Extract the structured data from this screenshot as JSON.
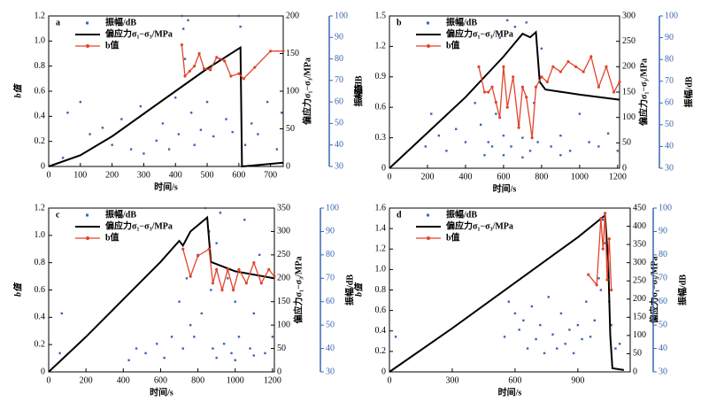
{
  "chart_data": [
    {
      "type": "combo",
      "label": "a",
      "xlabel": "时间/s",
      "ylabel": "b值",
      "y2label": "偏应力σ₁−σ₃/MPa",
      "y3label": "振幅/dB",
      "legend": "upper left",
      "xlim": [
        0,
        740
      ],
      "xticks": [
        0,
        100,
        200,
        300,
        400,
        500,
        600,
        700
      ],
      "ylim": [
        0,
        1.2
      ],
      "yticks": [
        0,
        0.2,
        0.4,
        0.6,
        0.8,
        {
          "value": 1,
          "label": "1.0"
        },
        1.2
      ],
      "y2lim": [
        0,
        200
      ],
      "y2ticks": [
        0,
        50,
        100,
        150,
        200
      ],
      "y3lim": [
        30,
        100
      ],
      "y3ticks": [
        30,
        40,
        50,
        60,
        70,
        80,
        90,
        100
      ],
      "series": [
        {
          "name": "振幅/dB",
          "type": "scatter",
          "axis": "y3",
          "color": "#3a66b0",
          "x": [
            45,
            60,
            100,
            130,
            170,
            200,
            230,
            260,
            290,
            300,
            340,
            360,
            380,
            400,
            410,
            420,
            425,
            430,
            440,
            450,
            460,
            480,
            500,
            520,
            540,
            560,
            580,
            600,
            605,
            620,
            640,
            660,
            690,
            720,
            735
          ],
          "values": [
            34,
            55,
            60,
            45,
            48,
            40,
            52,
            38,
            58,
            36,
            42,
            50,
            38,
            62,
            45,
            100,
            94,
            80,
            98,
            55,
            40,
            47,
            60,
            44,
            80,
            52,
            46,
            100,
            95,
            40,
            50,
            45,
            60,
            38,
            55
          ]
        },
        {
          "name": "偏应力σ₁−σ₃/MPa",
          "type": "line",
          "axis": "y2",
          "color": "#000000",
          "x": [
            0,
            100,
            200,
            300,
            400,
            500,
            605,
            610,
            740
          ],
          "values": [
            0,
            15,
            40,
            70,
            100,
            130,
            158,
            0,
            5
          ]
        },
        {
          "name": "b值",
          "type": "line",
          "axis": "y",
          "color": "#e0452c",
          "markers": true,
          "x": [
            420,
            430,
            445,
            460,
            475,
            490,
            510,
            530,
            555,
            575,
            600,
            615,
            650,
            700,
            740
          ],
          "values": [
            0.97,
            0.72,
            0.76,
            0.8,
            0.9,
            0.78,
            0.77,
            0.87,
            0.84,
            0.72,
            0.74,
            0.7,
            0.79,
            0.92,
            0.92
          ]
        }
      ]
    },
    {
      "type": "combo",
      "label": "b",
      "xlabel": "时间/s",
      "ylabel": "b值",
      "y2label": "偏应力σ₁−σ₃/MPa",
      "y3label": "振幅/dB",
      "legend": "upper left",
      "xlim": [
        0,
        1210
      ],
      "xticks": [
        0,
        200,
        400,
        600,
        800,
        1000,
        1200
      ],
      "ylim": [
        0,
        1.5
      ],
      "yticks": [
        0,
        0.3,
        0.6,
        0.9,
        1.2,
        1.5
      ],
      "y2lim": [
        0,
        300
      ],
      "y2ticks": [
        0,
        50,
        100,
        150,
        200,
        250,
        300
      ],
      "y3lim": [
        30,
        100
      ],
      "y3ticks": [
        30,
        40,
        50,
        60,
        70,
        80,
        90,
        100
      ],
      "series": [
        {
          "name": "振幅/dB",
          "type": "scatter",
          "axis": "y3",
          "color": "#3a66b0",
          "x": [
            190,
            220,
            260,
            300,
            350,
            400,
            450,
            480,
            500,
            520,
            540,
            560,
            580,
            600,
            620,
            640,
            660,
            680,
            700,
            720,
            740,
            760,
            780,
            800,
            850,
            900,
            950,
            1000,
            1050,
            1100,
            1150,
            1200,
            600,
            700,
            900
          ],
          "values": [
            40,
            55,
            45,
            38,
            48,
            42,
            60,
            50,
            36,
            42,
            40,
            55,
            90,
            45,
            98,
            40,
            95,
            50,
            44,
            97,
            38,
            60,
            42,
            85,
            40,
            45,
            38,
            55,
            42,
            40,
            46,
            38,
            36,
            35,
            36
          ]
        },
        {
          "name": "偏应力σ₁−σ₃/MPa",
          "type": "line",
          "axis": "y2",
          "color": "#000000",
          "x": [
            0,
            200,
            400,
            600,
            700,
            740,
            770,
            790,
            820,
            1000,
            1210
          ],
          "values": [
            0,
            70,
            140,
            220,
            265,
            258,
            268,
            170,
            155,
            145,
            135
          ]
        },
        {
          "name": "b值",
          "type": "line",
          "axis": "y",
          "color": "#e0452c",
          "markers": true,
          "x": [
            470,
            500,
            520,
            540,
            560,
            580,
            600,
            620,
            650,
            680,
            700,
            720,
            750,
            770,
            800,
            830,
            860,
            900,
            940,
            980,
            1020,
            1060,
            1100,
            1140,
            1180,
            1210
          ],
          "values": [
            1.0,
            0.75,
            0.75,
            0.8,
            0.65,
            0.5,
            1.0,
            0.6,
            0.9,
            0.4,
            0.8,
            0.7,
            0.3,
            0.8,
            0.9,
            0.85,
            1.0,
            0.95,
            1.05,
            1.0,
            0.95,
            1.1,
            0.8,
            1.0,
            0.75,
            0.85
          ]
        }
      ]
    },
    {
      "type": "combo",
      "label": "c",
      "xlabel": "时间/s",
      "ylabel": "b值",
      "y2label": "偏应力σ₁−σ₃/MPa",
      "y3label": "振幅/dB",
      "legend": "upper left",
      "xlim": [
        0,
        1210
      ],
      "xticks": [
        0,
        200,
        400,
        600,
        800,
        1000,
        1200
      ],
      "ylim": [
        0,
        1.2
      ],
      "yticks": [
        0,
        0.2,
        0.4,
        0.6,
        0.8,
        {
          "value": 1,
          "label": "1.0"
        },
        1.2
      ],
      "y2lim": [
        0,
        350
      ],
      "y2ticks": [
        0,
        50,
        100,
        150,
        200,
        250,
        300,
        350
      ],
      "y3lim": [
        30,
        100
      ],
      "y3ticks": [
        30,
        40,
        50,
        60,
        70,
        80,
        90,
        100
      ],
      "series": [
        {
          "name": "振幅/dB",
          "type": "scatter",
          "axis": "y3",
          "color": "#3a66b0",
          "x": [
            60,
            70,
            430,
            470,
            520,
            580,
            620,
            660,
            700,
            720,
            740,
            760,
            780,
            800,
            820,
            840,
            860,
            870,
            880,
            900,
            920,
            940,
            960,
            980,
            1000,
            1020,
            1050,
            1080,
            1100,
            1130,
            1160,
            1200,
            900,
            1000,
            1100
          ],
          "values": [
            38,
            55,
            35,
            40,
            38,
            42,
            36,
            45,
            60,
            40,
            70,
            50,
            45,
            80,
            55,
            100,
            90,
            65,
            40,
            85,
            98,
            42,
            70,
            38,
            60,
            45,
            95,
            40,
            55,
            80,
            38,
            45,
            36,
            35,
            37
          ]
        },
        {
          "name": "偏应力σ₁−σ₃/MPa",
          "type": "line",
          "axis": "y2",
          "color": "#000000",
          "x": [
            0,
            200,
            400,
            600,
            700,
            720,
            760,
            850,
            870,
            1000,
            1210
          ],
          "values": [
            0,
            75,
            155,
            235,
            280,
            270,
            300,
            330,
            235,
            215,
            200
          ]
        },
        {
          "name": "b值",
          "type": "line",
          "axis": "y",
          "color": "#e0452c",
          "markers": true,
          "x": [
            720,
            760,
            800,
            860,
            880,
            900,
            930,
            960,
            990,
            1020,
            1060,
            1100,
            1140,
            1180,
            1210
          ],
          "values": [
            0.9,
            0.7,
            0.85,
            0.9,
            0.65,
            0.75,
            0.6,
            0.75,
            0.6,
            0.75,
            0.65,
            0.8,
            0.65,
            0.75,
            0.7
          ]
        }
      ]
    },
    {
      "type": "combo",
      "label": "d",
      "xlabel": "时间/s",
      "ylabel": "b值",
      "y2label": "偏应力σ₁−σ₃/MPa",
      "y3label": "振幅/dB",
      "legend": "upper left",
      "xlim": [
        0,
        1150
      ],
      "xticks": [
        0,
        300,
        600,
        900
      ],
      "ylim": [
        0,
        1.6
      ],
      "yticks": [
        0,
        0.2,
        0.4,
        0.6,
        0.8,
        {
          "value": 1,
          "label": "1.0"
        },
        1.2,
        1.4,
        1.6
      ],
      "y2lim": [
        0,
        450
      ],
      "y2ticks": [
        0,
        50,
        100,
        150,
        200,
        250,
        300,
        350,
        400,
        450
      ],
      "y3lim": [
        30,
        100
      ],
      "y3ticks": [
        30,
        40,
        50,
        60,
        70,
        80,
        90,
        100
      ],
      "series": [
        {
          "name": "振幅/dB",
          "type": "scatter",
          "axis": "y3",
          "color": "#3a66b0",
          "x": [
            30,
            550,
            570,
            600,
            620,
            640,
            660,
            680,
            700,
            720,
            740,
            760,
            780,
            800,
            820,
            840,
            860,
            880,
            900,
            920,
            940,
            960,
            980,
            1000,
            1010,
            1020,
            1030,
            1040,
            1050,
            1060,
            1080,
            1100
          ],
          "values": [
            45,
            45,
            60,
            55,
            48,
            52,
            40,
            58,
            44,
            50,
            38,
            62,
            46,
            40,
            55,
            42,
            48,
            38,
            50,
            44,
            60,
            45,
            52,
            70,
            65,
            95,
            85,
            75,
            60,
            50,
            40,
            42
          ]
        },
        {
          "name": "偏应力σ₁−σ₃/MPa",
          "type": "line",
          "axis": "y2",
          "color": "#000000",
          "x": [
            0,
            300,
            600,
            900,
            1030,
            1045,
            1055,
            1065,
            1120
          ],
          "values": [
            0,
            120,
            245,
            370,
            430,
            300,
            100,
            10,
            5
          ]
        },
        {
          "name": "b值",
          "type": "line",
          "axis": "y",
          "color": "#e0452c",
          "markers": true,
          "x": [
            950,
            990,
            1010,
            1020,
            1030,
            1040,
            1050,
            1060
          ],
          "values": [
            0.95,
            0.85,
            1.5,
            1.2,
            1.55,
            0.9,
            1.3,
            0.8
          ]
        }
      ]
    }
  ]
}
